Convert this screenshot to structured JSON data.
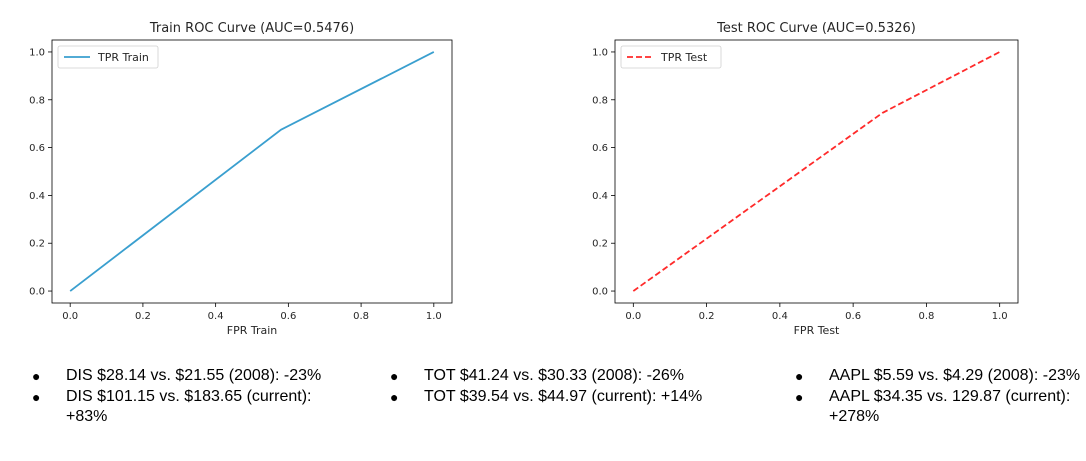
{
  "chart_data": [
    {
      "type": "line",
      "title": "Train ROC Curve (AUC=0.5476)",
      "xlabel": "FPR Train",
      "ylabel": "",
      "xlim": [
        -0.05,
        1.05
      ],
      "ylim": [
        -0.05,
        1.05
      ],
      "xticks": [
        "0.0",
        "0.2",
        "0.4",
        "0.6",
        "0.8",
        "1.0"
      ],
      "yticks": [
        "0.0",
        "0.2",
        "0.4",
        "0.6",
        "0.8",
        "1.0"
      ],
      "legend_position": "top-left",
      "series": [
        {
          "name": "TPR Train",
          "color": "#3a9fcf",
          "style": "solid",
          "x": [
            0.0,
            0.58,
            1.0
          ],
          "y": [
            0.0,
            0.675,
            1.0
          ]
        }
      ]
    },
    {
      "type": "line",
      "title": "Test ROC Curve (AUC=0.5326)",
      "xlabel": "FPR Test",
      "ylabel": "",
      "xlim": [
        -0.05,
        1.05
      ],
      "ylim": [
        -0.05,
        1.05
      ],
      "xticks": [
        "0.0",
        "0.2",
        "0.4",
        "0.6",
        "0.8",
        "1.0"
      ],
      "yticks": [
        "0.0",
        "0.2",
        "0.4",
        "0.6",
        "0.8",
        "1.0"
      ],
      "legend_position": "top-left",
      "series": [
        {
          "name": "TPR Test",
          "color": "#ff2a2a",
          "style": "dashed",
          "x": [
            0.0,
            0.68,
            1.0
          ],
          "y": [
            0.0,
            0.745,
            1.0
          ]
        }
      ]
    }
  ],
  "notes": [
    [
      "DIS $28.14 vs. $21.55 (2008): -23%",
      "DIS $101.15 vs. $183.65 (current): +83%"
    ],
    [
      "TOT $41.24 vs. $30.33 (2008): -26%",
      "TOT $39.54 vs. $44.97 (current): +14%"
    ],
    [
      "AAPL $5.59 vs. $4.29 (2008): -23%",
      "AAPL $34.35 vs. 129.87 (current): +278%"
    ]
  ]
}
